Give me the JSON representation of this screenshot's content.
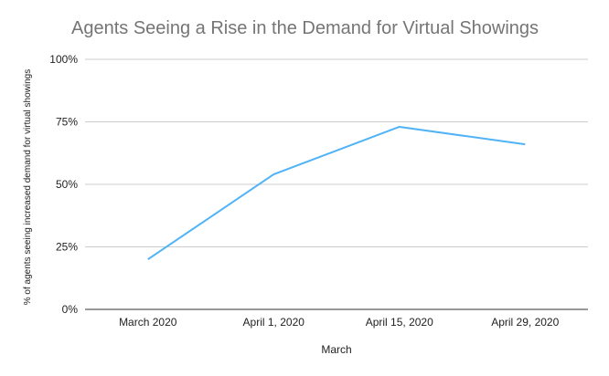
{
  "chart_data": {
    "type": "line",
    "title": "Agents Seeing a Rise in the Demand for Virtual Showings",
    "xlabel": "March",
    "ylabel": "% of agents seeing increased demand for virtual showings",
    "categories": [
      "March 2020",
      "April 1, 2020",
      "April 15, 2020",
      "April 29, 2020"
    ],
    "series": [
      {
        "values": [
          20,
          54,
          73,
          66
        ],
        "color": "#4FB3F6"
      }
    ],
    "ylim": [
      0,
      100
    ],
    "yticks": [
      "0%",
      "25%",
      "50%",
      "75%",
      "100%"
    ],
    "ytick_values": [
      0,
      25,
      50,
      75,
      100
    ],
    "grid": true,
    "legend": "none"
  }
}
